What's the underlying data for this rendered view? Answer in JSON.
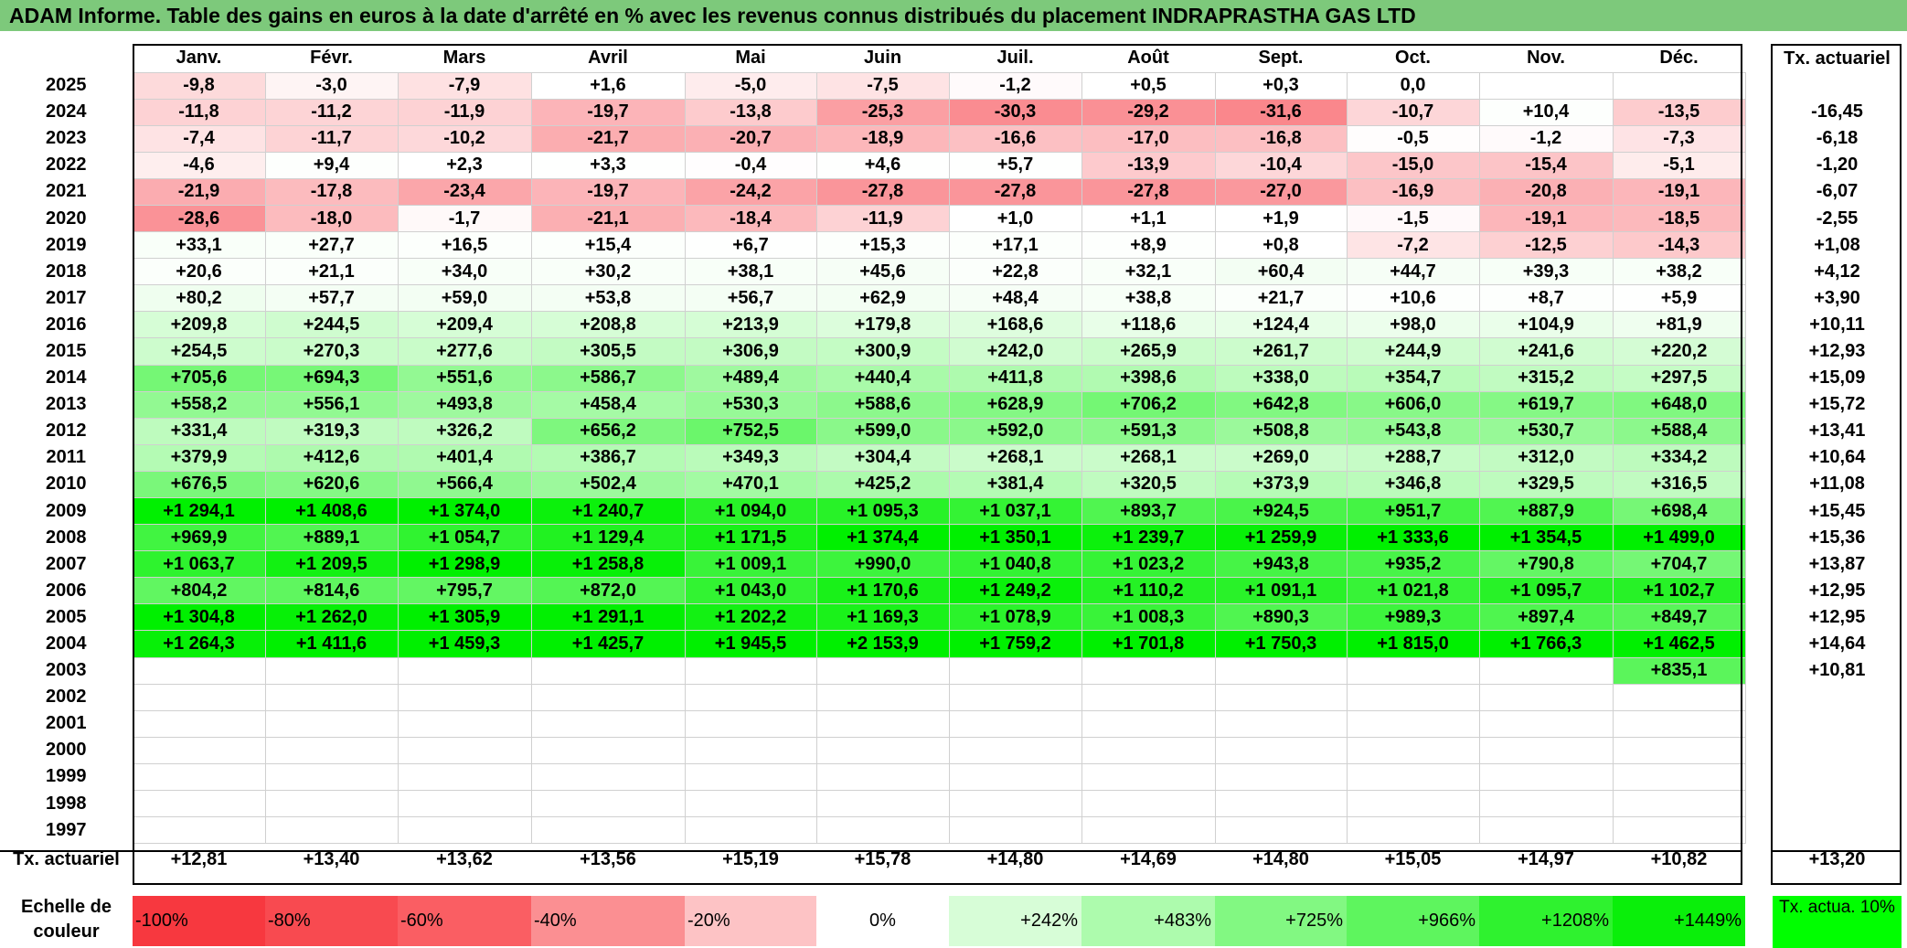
{
  "title": "ADAM Informe. Table des gains en euros à la date d'arrêté en % avec les revenus connus distribués du placement INDRAPRASTHA GAS LTD",
  "months": [
    "Janv.",
    "Févr.",
    "Mars",
    "Avril",
    "Mai",
    "Juin",
    "Juil.",
    "Août",
    "Sept.",
    "Oct.",
    "Nov.",
    "Déc."
  ],
  "rate_header": "Tx. actuariel",
  "rows": [
    {
      "year": "2025",
      "values": [
        "-9,8",
        "-3,0",
        "-7,9",
        "+1,6",
        "-5,0",
        "-7,5",
        "-1,2",
        "+0,5",
        "+0,3",
        "0,0",
        "",
        ""
      ],
      "rate": ""
    },
    {
      "year": "2024",
      "values": [
        "-11,8",
        "-11,2",
        "-11,9",
        "-19,7",
        "-13,8",
        "-25,3",
        "-30,3",
        "-29,2",
        "-31,6",
        "-10,7",
        "+10,4",
        "-13,5"
      ],
      "rate": "-16,45"
    },
    {
      "year": "2023",
      "values": [
        "-7,4",
        "-11,7",
        "-10,2",
        "-21,7",
        "-20,7",
        "-18,9",
        "-16,6",
        "-17,0",
        "-16,8",
        "-0,5",
        "-1,2",
        "-7,3"
      ],
      "rate": "-6,18"
    },
    {
      "year": "2022",
      "values": [
        "-4,6",
        "+9,4",
        "+2,3",
        "+3,3",
        "-0,4",
        "+4,6",
        "+5,7",
        "-13,9",
        "-10,4",
        "-15,0",
        "-15,4",
        "-5,1"
      ],
      "rate": "-1,20"
    },
    {
      "year": "2021",
      "values": [
        "-21,9",
        "-17,8",
        "-23,4",
        "-19,7",
        "-24,2",
        "-27,8",
        "-27,8",
        "-27,8",
        "-27,0",
        "-16,9",
        "-20,8",
        "-19,1"
      ],
      "rate": "-6,07"
    },
    {
      "year": "2020",
      "values": [
        "-28,6",
        "-18,0",
        "-1,7",
        "-21,1",
        "-18,4",
        "-11,9",
        "+1,0",
        "+1,1",
        "+1,9",
        "-1,5",
        "-19,1",
        "-18,5"
      ],
      "rate": "-2,55"
    },
    {
      "year": "2019",
      "values": [
        "+33,1",
        "+27,7",
        "+16,5",
        "+15,4",
        "+6,7",
        "+15,3",
        "+17,1",
        "+8,9",
        "+0,8",
        "-7,2",
        "-12,5",
        "-14,3"
      ],
      "rate": "+1,08"
    },
    {
      "year": "2018",
      "values": [
        "+20,6",
        "+21,1",
        "+34,0",
        "+30,2",
        "+38,1",
        "+45,6",
        "+22,8",
        "+32,1",
        "+60,4",
        "+44,7",
        "+39,3",
        "+38,2"
      ],
      "rate": "+4,12"
    },
    {
      "year": "2017",
      "values": [
        "+80,2",
        "+57,7",
        "+59,0",
        "+53,8",
        "+56,7",
        "+62,9",
        "+48,4",
        "+38,8",
        "+21,7",
        "+10,6",
        "+8,7",
        "+5,9"
      ],
      "rate": "+3,90"
    },
    {
      "year": "2016",
      "values": [
        "+209,8",
        "+244,5",
        "+209,4",
        "+208,8",
        "+213,9",
        "+179,8",
        "+168,6",
        "+118,6",
        "+124,4",
        "+98,0",
        "+104,9",
        "+81,9"
      ],
      "rate": "+10,11"
    },
    {
      "year": "2015",
      "values": [
        "+254,5",
        "+270,3",
        "+277,6",
        "+305,5",
        "+306,9",
        "+300,9",
        "+242,0",
        "+265,9",
        "+261,7",
        "+244,9",
        "+241,6",
        "+220,2"
      ],
      "rate": "+12,93"
    },
    {
      "year": "2014",
      "values": [
        "+705,6",
        "+694,3",
        "+551,6",
        "+586,7",
        "+489,4",
        "+440,4",
        "+411,8",
        "+398,6",
        "+338,0",
        "+354,7",
        "+315,2",
        "+297,5"
      ],
      "rate": "+15,09"
    },
    {
      "year": "2013",
      "values": [
        "+558,2",
        "+556,1",
        "+493,8",
        "+458,4",
        "+530,3",
        "+588,6",
        "+628,9",
        "+706,2",
        "+642,8",
        "+606,0",
        "+619,7",
        "+648,0"
      ],
      "rate": "+15,72"
    },
    {
      "year": "2012",
      "values": [
        "+331,4",
        "+319,3",
        "+326,2",
        "+656,2",
        "+752,5",
        "+599,0",
        "+592,0",
        "+591,3",
        "+508,8",
        "+543,8",
        "+530,7",
        "+588,4"
      ],
      "rate": "+13,41"
    },
    {
      "year": "2011",
      "values": [
        "+379,9",
        "+412,6",
        "+401,4",
        "+386,7",
        "+349,3",
        "+304,4",
        "+268,1",
        "+268,1",
        "+269,0",
        "+288,7",
        "+312,0",
        "+334,2"
      ],
      "rate": "+10,64"
    },
    {
      "year": "2010",
      "values": [
        "+676,5",
        "+620,6",
        "+566,4",
        "+502,4",
        "+470,1",
        "+425,2",
        "+381,4",
        "+320,5",
        "+373,9",
        "+346,8",
        "+329,5",
        "+316,5"
      ],
      "rate": "+11,08"
    },
    {
      "year": "2009",
      "values": [
        "+1 294,1",
        "+1 408,6",
        "+1 374,0",
        "+1 240,7",
        "+1 094,0",
        "+1 095,3",
        "+1 037,1",
        "+893,7",
        "+924,5",
        "+951,7",
        "+887,9",
        "+698,4"
      ],
      "rate": "+15,45"
    },
    {
      "year": "2008",
      "values": [
        "+969,9",
        "+889,1",
        "+1 054,7",
        "+1 129,4",
        "+1 171,5",
        "+1 374,4",
        "+1 350,1",
        "+1 239,7",
        "+1 259,9",
        "+1 333,6",
        "+1 354,5",
        "+1 499,0"
      ],
      "rate": "+15,36"
    },
    {
      "year": "2007",
      "values": [
        "+1 063,7",
        "+1 209,5",
        "+1 298,9",
        "+1 258,8",
        "+1 009,1",
        "+990,0",
        "+1 040,8",
        "+1 023,2",
        "+943,8",
        "+935,2",
        "+790,8",
        "+704,7"
      ],
      "rate": "+13,87"
    },
    {
      "year": "2006",
      "values": [
        "+804,2",
        "+814,6",
        "+795,7",
        "+872,0",
        "+1 043,0",
        "+1 170,6",
        "+1 249,2",
        "+1 110,2",
        "+1 091,1",
        "+1 021,8",
        "+1 095,7",
        "+1 102,7"
      ],
      "rate": "+12,95"
    },
    {
      "year": "2005",
      "values": [
        "+1 304,8",
        "+1 262,0",
        "+1 305,9",
        "+1 291,1",
        "+1 202,2",
        "+1 169,3",
        "+1 078,9",
        "+1 008,3",
        "+890,3",
        "+989,3",
        "+897,4",
        "+849,7"
      ],
      "rate": "+12,95"
    },
    {
      "year": "2004",
      "values": [
        "+1 264,3",
        "+1 411,6",
        "+1 459,3",
        "+1 425,7",
        "+1 945,5",
        "+2 153,9",
        "+1 759,2",
        "+1 701,8",
        "+1 750,3",
        "+1 815,0",
        "+1 766,3",
        "+1 462,5"
      ],
      "rate": "+14,64"
    },
    {
      "year": "2003",
      "values": [
        "",
        "",
        "",
        "",
        "",
        "",
        "",
        "",
        "",
        "",
        "",
        "+835,1"
      ],
      "rate": "+10,81"
    },
    {
      "year": "2002",
      "values": [
        "",
        "",
        "",
        "",
        "",
        "",
        "",
        "",
        "",
        "",
        "",
        ""
      ],
      "rate": ""
    },
    {
      "year": "2001",
      "values": [
        "",
        "",
        "",
        "",
        "",
        "",
        "",
        "",
        "",
        "",
        "",
        ""
      ],
      "rate": ""
    },
    {
      "year": "2000",
      "values": [
        "",
        "",
        "",
        "",
        "",
        "",
        "",
        "",
        "",
        "",
        "",
        ""
      ],
      "rate": ""
    },
    {
      "year": "1999",
      "values": [
        "",
        "",
        "",
        "",
        "",
        "",
        "",
        "",
        "",
        "",
        "",
        ""
      ],
      "rate": ""
    },
    {
      "year": "1998",
      "values": [
        "",
        "",
        "",
        "",
        "",
        "",
        "",
        "",
        "",
        "",
        "",
        ""
      ],
      "rate": ""
    },
    {
      "year": "1997",
      "values": [
        "",
        "",
        "",
        "",
        "",
        "",
        "",
        "",
        "",
        "",
        "",
        ""
      ],
      "rate": ""
    }
  ],
  "footer": {
    "label": "Tx. actuariel",
    "values": [
      "+12,81",
      "+13,40",
      "+13,62",
      "+13,56",
      "+15,19",
      "+15,78",
      "+14,80",
      "+14,69",
      "+14,80",
      "+15,05",
      "+14,97",
      "+10,82"
    ],
    "rate": "+13,20"
  },
  "legend": {
    "label": "Echelle de couleur",
    "stops": [
      {
        "label": "-100%",
        "color": "#f7383f",
        "align": "l"
      },
      {
        "label": "-80%",
        "color": "#f84a50",
        "align": "l"
      },
      {
        "label": "-60%",
        "color": "#fa5e63",
        "align": "l"
      },
      {
        "label": "-40%",
        "color": "#fb8f92",
        "align": "l"
      },
      {
        "label": "-20%",
        "color": "#fdc3c5",
        "align": "l"
      },
      {
        "label": "0%",
        "color": "#ffffff",
        "align": "c"
      },
      {
        "label": "+242%",
        "color": "#d7fdd7",
        "align": "r"
      },
      {
        "label": "+483%",
        "color": "#adfbad",
        "align": "r"
      },
      {
        "label": "+725%",
        "color": "#82f882",
        "align": "r"
      },
      {
        "label": "+966%",
        "color": "#5ef55e",
        "align": "r"
      },
      {
        "label": "+1208%",
        "color": "#2ff22f",
        "align": "r"
      },
      {
        "label": "+1449%",
        "color": "#0aef0a",
        "align": "r"
      }
    ],
    "rate_label": "Tx. actua. 10%",
    "rate_color": "#00ff00"
  }
}
